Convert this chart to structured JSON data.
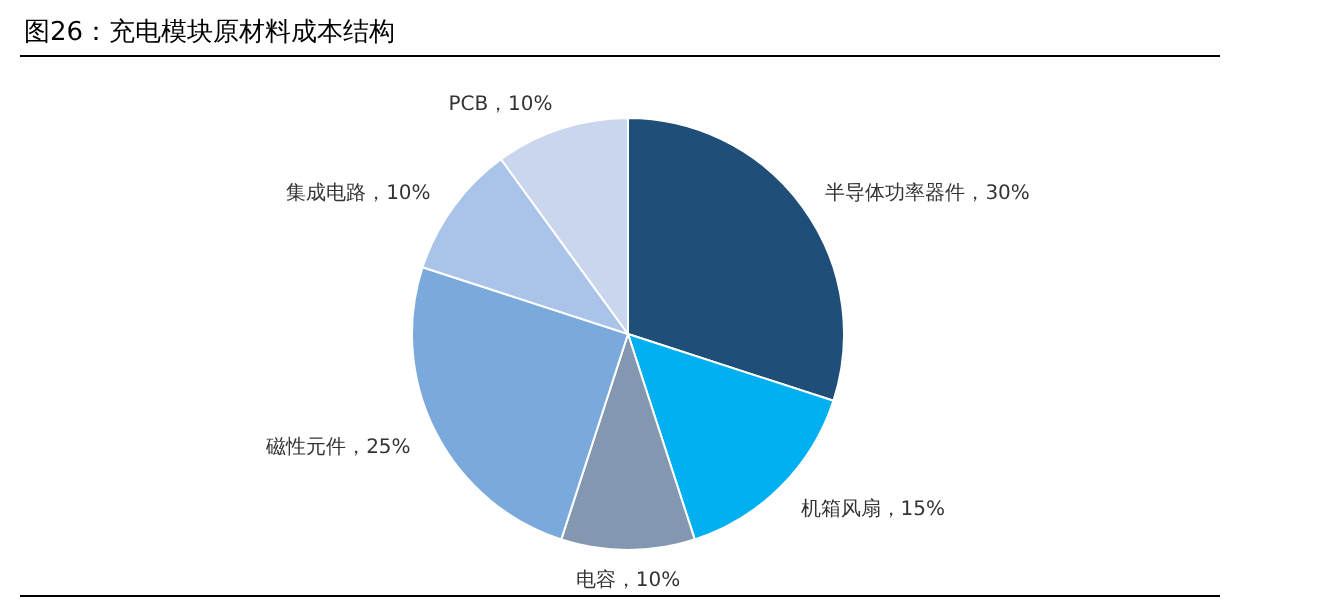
{
  "chart_data": {
    "type": "pie",
    "title": "图26：充电模块原材料成本结构",
    "categories": [
      "半导体功率器件",
      "机箱风扇",
      "电容",
      "磁性元件",
      "集成电路",
      "PCB"
    ],
    "values": [
      30,
      15,
      10,
      25,
      10,
      10
    ],
    "value_labels": [
      "30%",
      "15%",
      "10%",
      "25%",
      "10%",
      "10%"
    ],
    "colors": [
      "#1f4e79",
      "#00b0f0",
      "#8497b0",
      "#7aa9dc",
      "#a9c4e8",
      "#c9d6ee"
    ]
  }
}
